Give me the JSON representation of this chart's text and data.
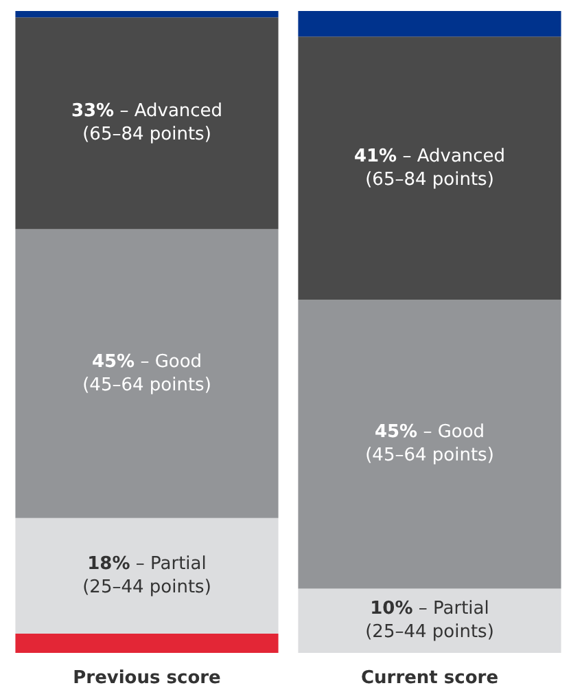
{
  "chart_data": {
    "type": "bar",
    "stacked": true,
    "categories": [
      "Previous score",
      "Current score"
    ],
    "series": [
      {
        "color": "#e32636",
        "values": [
          3,
          0
        ],
        "value_labels": [
          null,
          null
        ]
      },
      {
        "color": "#dcdddf",
        "values": [
          18,
          10
        ],
        "value_labels": [
          "18% – Partial\n(25–44 points)",
          "10% – Partial\n(25–44 points)"
        ]
      },
      {
        "color": "#939598",
        "values": [
          45,
          45
        ],
        "value_labels": [
          "45% – Good\n(45–64 points)",
          "45% – Good\n(45–64 points)"
        ]
      },
      {
        "color": "#4a4a4a",
        "values": [
          33,
          41
        ],
        "value_labels": [
          "33% – Advanced\n(65–84 points)",
          "41% – Advanced\n(65–84 points)"
        ]
      },
      {
        "color": "#00338d",
        "values": [
          1,
          4
        ],
        "value_labels": [
          null,
          null
        ]
      }
    ],
    "grid": false
  }
}
